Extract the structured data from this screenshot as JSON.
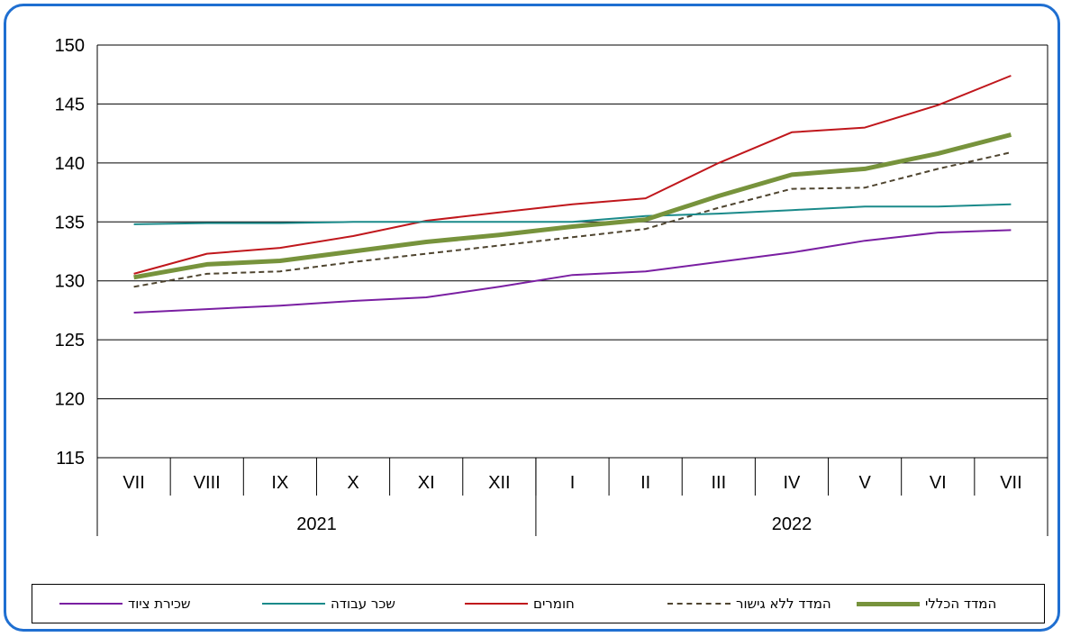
{
  "chart_data": {
    "type": "line",
    "title": "",
    "xlabel": "",
    "ylabel": "",
    "ylim": [
      115,
      150
    ],
    "yticks": [
      115,
      120,
      125,
      130,
      135,
      140,
      145,
      150
    ],
    "grid": true,
    "legend_position": "bottom",
    "categories": [
      "VII",
      "VIII",
      "IX",
      "X",
      "XI",
      "XII",
      "I",
      "II",
      "III",
      "IV",
      "V",
      "VI",
      "VII"
    ],
    "year_groups": [
      {
        "label": "2021",
        "start": 0,
        "end": 5
      },
      {
        "label": "2022",
        "start": 6,
        "end": 12
      }
    ],
    "series": [
      {
        "name": "המדד הכללי",
        "color": "#77933c",
        "style": "thick",
        "values": [
          130.3,
          131.4,
          131.7,
          132.5,
          133.3,
          133.9,
          134.6,
          135.2,
          137.2,
          139.0,
          139.5,
          140.8,
          142.4
        ]
      },
      {
        "name": "המדד ללא גישור",
        "color": "#4f4530",
        "style": "dashed",
        "values": [
          129.5,
          130.6,
          130.8,
          131.6,
          132.3,
          133.0,
          133.7,
          134.4,
          136.2,
          137.8,
          137.9,
          139.5,
          140.9
        ]
      },
      {
        "name": "חומרים",
        "color": "#c0171c",
        "style": "solid",
        "values": [
          130.6,
          132.3,
          132.8,
          133.8,
          135.1,
          135.8,
          136.5,
          137.0,
          140.0,
          142.6,
          143.0,
          144.9,
          147.4
        ]
      },
      {
        "name": "שכר עבודה",
        "color": "#1a8a8a",
        "style": "solid",
        "values": [
          134.8,
          134.9,
          134.9,
          135.0,
          135.0,
          135.0,
          135.0,
          135.5,
          135.7,
          136.0,
          136.3,
          136.3,
          136.5
        ]
      },
      {
        "name": "שכירת ציוד",
        "color": "#7a1fa2",
        "style": "solid",
        "values": [
          127.3,
          127.6,
          127.9,
          128.3,
          128.6,
          129.5,
          130.5,
          130.8,
          131.6,
          132.4,
          133.4,
          134.1,
          134.3
        ]
      }
    ]
  }
}
